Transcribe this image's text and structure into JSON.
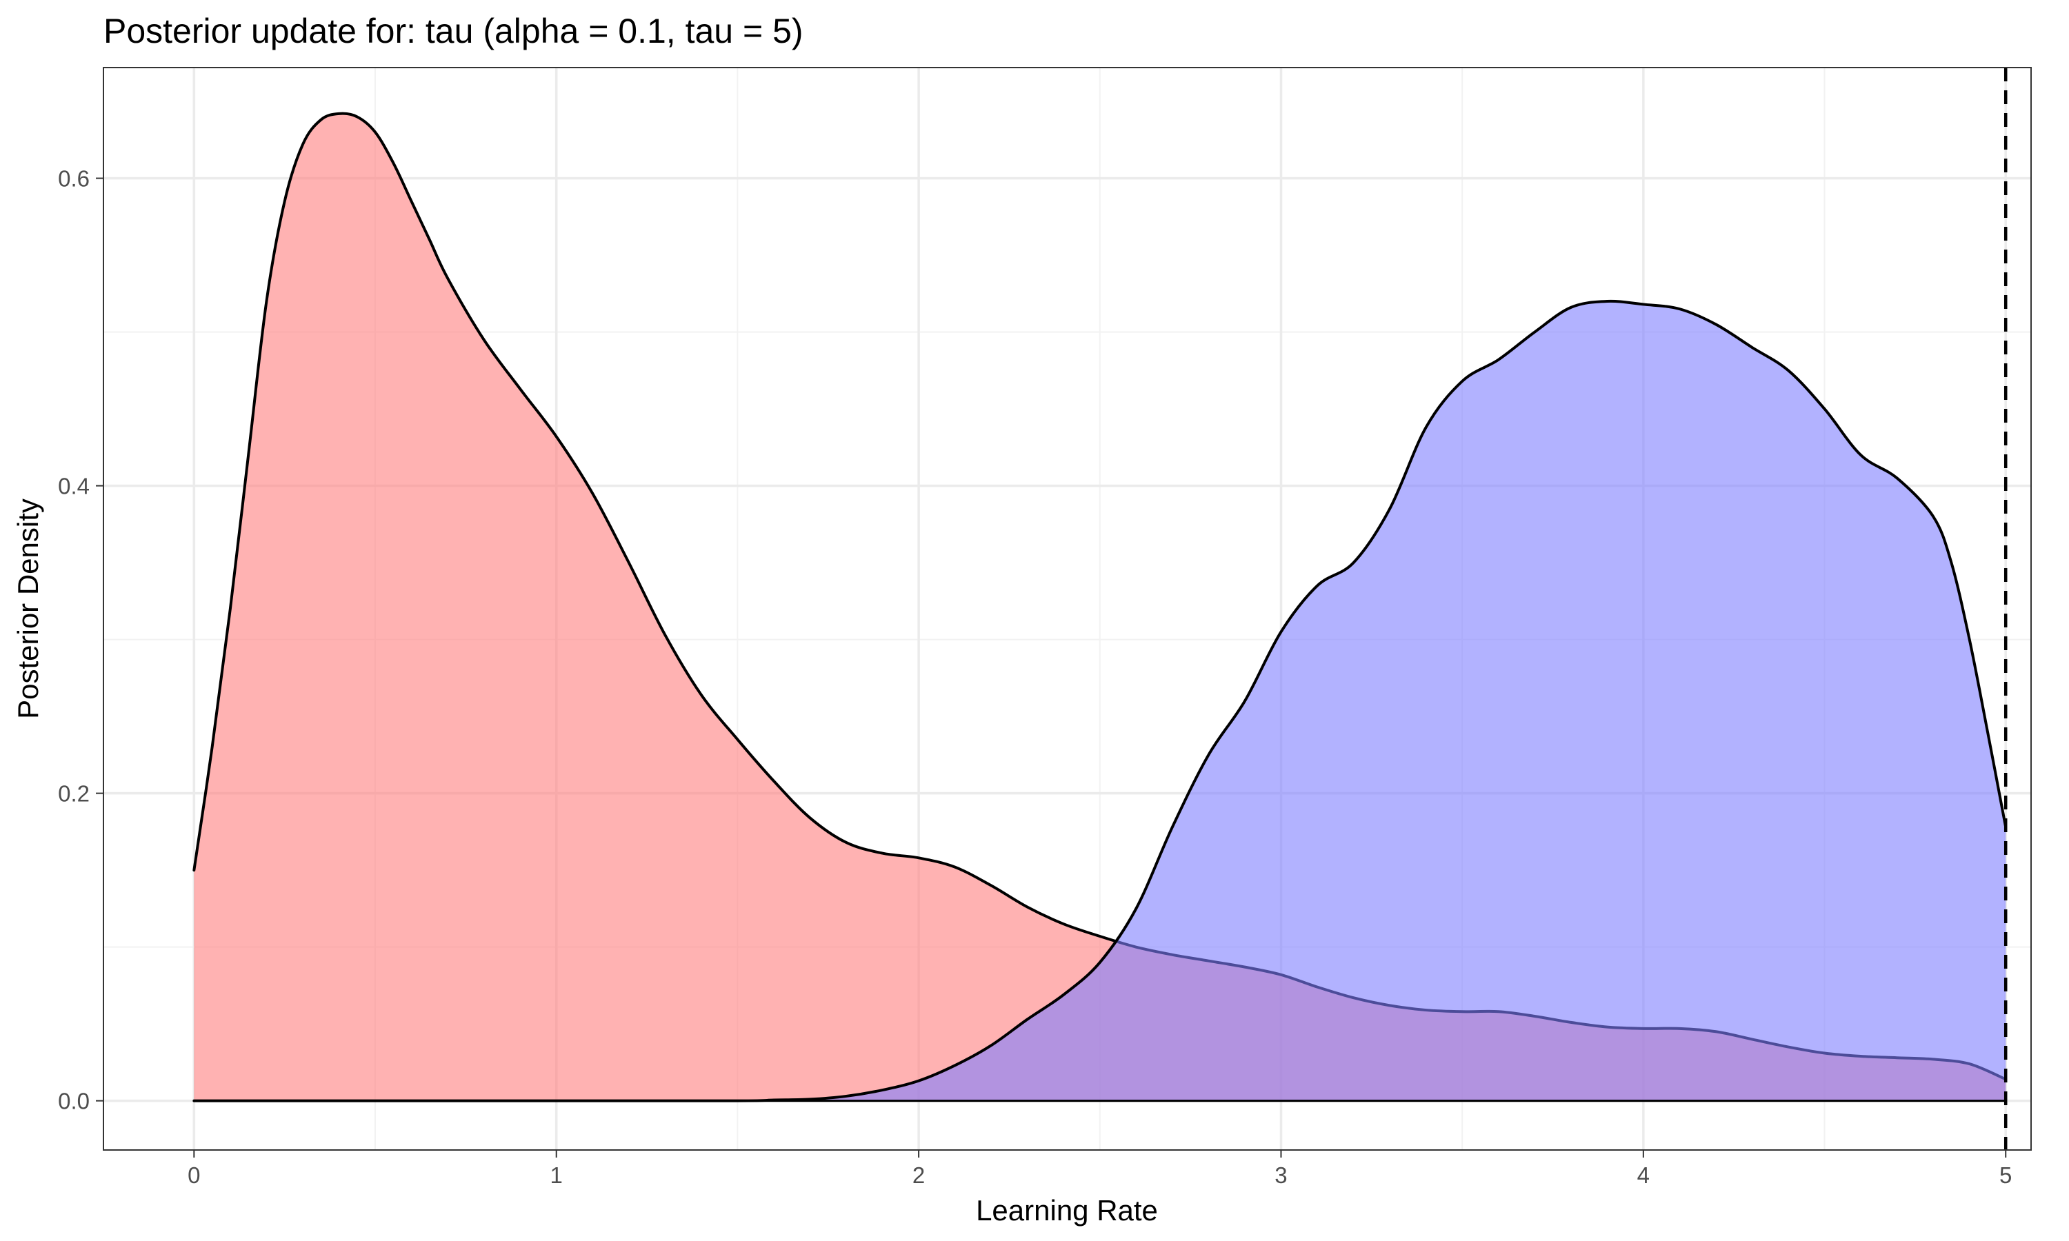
{
  "chart_data": {
    "type": "area",
    "title": "Posterior update for: tau (alpha = 0.1, tau = 5)",
    "xlabel": "Learning Rate",
    "ylabel": "Posterior Density",
    "xlim": [
      -0.25,
      5.07
    ],
    "ylim": [
      -0.032,
      0.672
    ],
    "x_ticks": [
      0,
      1,
      2,
      3,
      4,
      5
    ],
    "x_tick_labels": [
      "0",
      "1",
      "2",
      "3",
      "4",
      "5"
    ],
    "y_ticks": [
      0.0,
      0.2,
      0.4,
      0.6
    ],
    "y_tick_labels": [
      "0.0",
      "0.2",
      "0.4",
      "0.6"
    ],
    "x_minor_ticks": [
      0.5,
      1.5,
      2.5,
      3.5,
      4.5
    ],
    "y_minor_ticks": [
      0.1,
      0.3,
      0.5
    ],
    "grid": true,
    "reference_line": {
      "x": 5,
      "style": "dashed"
    },
    "series": [
      {
        "color": "#ff7f7f",
        "fill_opacity": 0.6,
        "x": [
          0,
          0.05,
          0.1,
          0.15,
          0.2,
          0.25,
          0.3,
          0.35,
          0.4,
          0.45,
          0.5,
          0.55,
          0.6,
          0.65,
          0.7,
          0.8,
          0.9,
          1.0,
          1.1,
          1.2,
          1.3,
          1.4,
          1.5,
          1.6,
          1.7,
          1.8,
          1.9,
          2.0,
          2.1,
          2.2,
          2.3,
          2.4,
          2.5,
          2.6,
          2.7,
          2.8,
          2.9,
          3.0,
          3.1,
          3.2,
          3.3,
          3.4,
          3.5,
          3.6,
          3.7,
          3.8,
          3.9,
          4.0,
          4.1,
          4.2,
          4.3,
          4.4,
          4.5,
          4.6,
          4.7,
          4.8,
          4.9,
          5.0
        ],
        "y": [
          0.15,
          0.23,
          0.32,
          0.42,
          0.52,
          0.585,
          0.622,
          0.638,
          0.642,
          0.64,
          0.63,
          0.61,
          0.585,
          0.56,
          0.535,
          0.495,
          0.463,
          0.432,
          0.395,
          0.35,
          0.303,
          0.264,
          0.235,
          0.208,
          0.184,
          0.168,
          0.161,
          0.158,
          0.152,
          0.14,
          0.126,
          0.115,
          0.107,
          0.1,
          0.095,
          0.091,
          0.087,
          0.082,
          0.074,
          0.067,
          0.062,
          0.059,
          0.058,
          0.058,
          0.055,
          0.051,
          0.048,
          0.047,
          0.047,
          0.045,
          0.04,
          0.035,
          0.031,
          0.029,
          0.028,
          0.027,
          0.024,
          0.014
        ]
      },
      {
        "color": "#7f7fff",
        "fill_opacity": 0.6,
        "x": [
          0,
          0.5,
          1.0,
          1.5,
          1.6,
          1.7,
          1.8,
          1.9,
          2.0,
          2.1,
          2.2,
          2.3,
          2.4,
          2.5,
          2.6,
          2.7,
          2.8,
          2.9,
          3.0,
          3.1,
          3.2,
          3.3,
          3.4,
          3.5,
          3.6,
          3.7,
          3.8,
          3.9,
          4.0,
          4.1,
          4.2,
          4.3,
          4.4,
          4.5,
          4.6,
          4.7,
          4.8,
          4.85,
          4.9,
          4.95,
          5.0
        ],
        "y": [
          0.0,
          0.0,
          0.0,
          0.0,
          0.0005,
          0.001,
          0.003,
          0.007,
          0.013,
          0.023,
          0.036,
          0.053,
          0.069,
          0.09,
          0.125,
          0.178,
          0.225,
          0.26,
          0.305,
          0.335,
          0.35,
          0.385,
          0.438,
          0.468,
          0.482,
          0.5,
          0.516,
          0.52,
          0.518,
          0.515,
          0.505,
          0.49,
          0.475,
          0.45,
          0.42,
          0.405,
          0.38,
          0.35,
          0.3,
          0.24,
          0.178
        ]
      }
    ]
  }
}
